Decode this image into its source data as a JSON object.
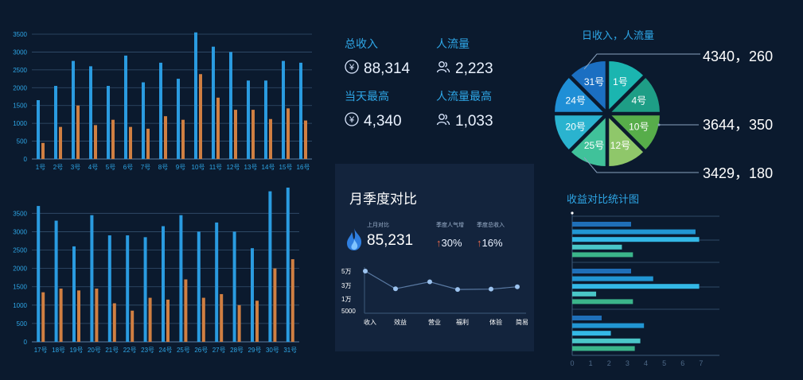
{
  "kpis": {
    "total_income": {
      "label": "总收入",
      "value": "88,314",
      "icon": "yen-circle-icon"
    },
    "visitors": {
      "label": "人流量",
      "value": "2,223",
      "icon": "people-icon"
    },
    "day_peak": {
      "label": "当天最高",
      "value": "4,340",
      "icon": "yen-circle-icon"
    },
    "visitor_peak": {
      "label": "人流量最高",
      "value": "1,033",
      "icon": "people-icon"
    }
  },
  "monthly_panel": {
    "title": "月季度对比",
    "last_month_label": "上月对比",
    "last_month_value": "85,231",
    "popularity_label": "季度人气增",
    "popularity_value": "30%",
    "income_label": "季度总收入",
    "income_value": "16%"
  },
  "pie_section": {
    "title": "日收入，人流量",
    "callouts": [
      "4340，260",
      "3644，350",
      "3429，180"
    ]
  },
  "hbar_section": {
    "title": "收益对比统计图"
  },
  "chart_data": [
    {
      "type": "bar",
      "categories": [
        "1号",
        "2号",
        "3号",
        "4号",
        "5号",
        "6号",
        "7号",
        "8号",
        "9号",
        "10号",
        "11号",
        "12号",
        "13号",
        "14号",
        "15号",
        "16号"
      ],
      "series": [
        {
          "values": [
            1650,
            2050,
            2750,
            2600,
            2050,
            2900,
            2150,
            2700,
            2250,
            3550,
            3150,
            3000,
            2200,
            2200,
            2750,
            2700
          ]
        },
        {
          "values": [
            450,
            900,
            1500,
            950,
            1100,
            900,
            850,
            1200,
            1100,
            2380,
            1720,
            1380,
            1380,
            1120,
            1420,
            1080
          ]
        }
      ],
      "ylim": [
        0,
        3500
      ],
      "yticks": [
        0,
        500,
        1000,
        1500,
        2000,
        2500,
        3000,
        3500
      ],
      "grid": true
    },
    {
      "type": "bar",
      "categories": [
        "17号",
        "18号",
        "19号",
        "20号",
        "21号",
        "22号",
        "23号",
        "24号",
        "25号",
        "26号",
        "27号",
        "28号",
        "29号",
        "30号",
        "31号"
      ],
      "series": [
        {
          "values": [
            3700,
            3300,
            2600,
            3450,
            2900,
            2900,
            2850,
            3150,
            3450,
            3000,
            3250,
            3000,
            2550,
            4100,
            4200
          ]
        },
        {
          "values": [
            1350,
            1450,
            1400,
            1450,
            1050,
            850,
            1200,
            1150,
            1700,
            1200,
            1300,
            1000,
            1120,
            2000,
            2250
          ]
        }
      ],
      "ylim": [
        0,
        4200
      ],
      "yticks": [
        0,
        500,
        1000,
        1500,
        2000,
        2500,
        3000,
        3500
      ],
      "grid": true
    },
    {
      "type": "line",
      "categories": [
        "收入",
        "效益",
        "营业",
        "福利",
        "体验",
        "简易"
      ],
      "values": [
        50000,
        25000,
        35000,
        24000,
        24500,
        28000
      ],
      "ytick_labels": [
        "5000",
        "1万",
        "3万",
        "5万"
      ],
      "ytick_values": [
        5000,
        10000,
        30000,
        50000
      ]
    },
    {
      "type": "pie",
      "labels": [
        "1号",
        "4号",
        "10号",
        "12号",
        "25号",
        "20号",
        "24号",
        "31号"
      ],
      "values": [
        1,
        1,
        1,
        1,
        1,
        1,
        1,
        1
      ],
      "colors": [
        "#1bb5b0",
        "#1e9e86",
        "#57ad4a",
        "#8fc76a",
        "#40c29a",
        "#2ab3cf",
        "#1f8fd6",
        "#1b6fc2"
      ]
    },
    {
      "type": "bar",
      "orientation": "horizontal",
      "groups": [
        [
          3.2,
          6.7,
          6.9,
          2.7,
          3.3
        ],
        [
          3.2,
          4.4,
          6.9,
          1.3,
          3.3
        ],
        [
          1.6,
          3.9,
          2.1,
          3.7,
          3.4
        ]
      ],
      "xlim": [
        0,
        8
      ],
      "xticks": [
        0,
        1,
        2,
        3,
        4,
        5,
        6,
        7
      ],
      "colors": [
        "#1f6fb8",
        "#2196d3",
        "#34b8e6",
        "#4ac6c8",
        "#3bb58a"
      ]
    }
  ]
}
